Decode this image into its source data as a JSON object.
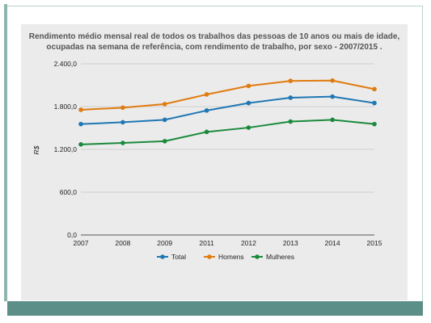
{
  "chart_data": {
    "type": "line",
    "title": [
      "Rendimento médio mensal real de todos os trabalhos das pessoas de 10 anos ou mais de idade,",
      "ocupadas na semana de referência, com rendimento de trabalho, por sexo - 2007/2015 ."
    ],
    "xlabel": "",
    "ylabel": "R$",
    "categories": [
      "2007",
      "2008",
      "2009",
      "2011",
      "2012",
      "2013",
      "2014",
      "2015"
    ],
    "ylim": [
      0,
      2400
    ],
    "yticks": [
      0,
      600,
      1200,
      1800,
      2400
    ],
    "ytick_labels": [
      "0,0",
      "600,0",
      "1.200,0",
      "1.800,0",
      "2.400,0"
    ],
    "grid": true,
    "legend_position": "bottom",
    "series": [
      {
        "name": "Total",
        "color": "#1f77b4",
        "values": [
          1555,
          1580,
          1615,
          1745,
          1850,
          1925,
          1940,
          1850
        ]
      },
      {
        "name": "Homens",
        "color": "#e07b10",
        "values": [
          1755,
          1785,
          1835,
          1970,
          2090,
          2160,
          2165,
          2045
        ]
      },
      {
        "name": "Mulheres",
        "color": "#1b8a3c",
        "values": [
          1270,
          1290,
          1315,
          1445,
          1505,
          1590,
          1615,
          1555
        ]
      }
    ]
  }
}
